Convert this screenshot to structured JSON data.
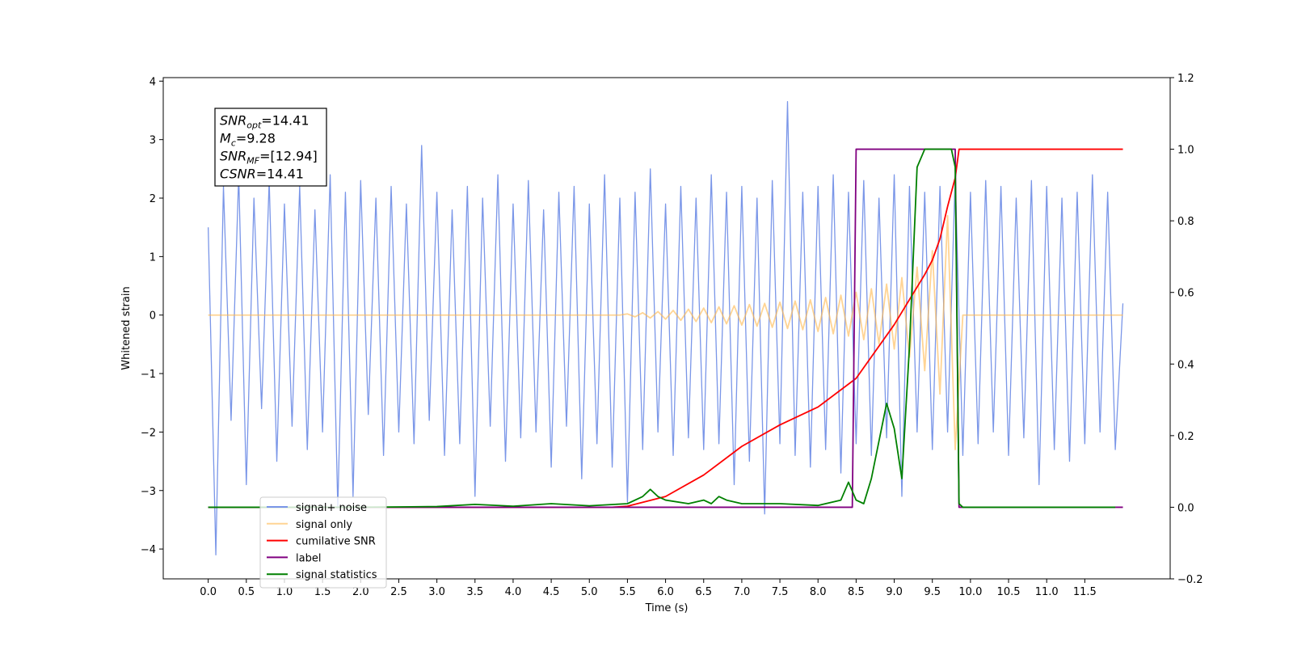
{
  "chart_data": {
    "type": "line",
    "xlabel": "Time (s)",
    "ylabel": "Whitened strain",
    "xlim": [
      -0.59,
      12.62
    ],
    "ylim": [
      -4.51,
      4.06
    ],
    "y2lim": [
      -0.2,
      1.2
    ],
    "xticks": [
      {
        "value": 0,
        "label": "0.0"
      },
      0.5,
      {
        "value": 1,
        "label": "1.0"
      },
      1.5,
      {
        "value": 2,
        "label": "2.0"
      },
      2.5,
      {
        "value": 3,
        "label": "3.0"
      },
      3.5,
      {
        "value": 4,
        "label": "4.0"
      },
      4.5,
      {
        "value": 5,
        "label": "5.0"
      },
      5.5,
      {
        "value": 6,
        "label": "6.0"
      },
      6.5,
      {
        "value": 7,
        "label": "7.0"
      },
      7.5,
      {
        "value": 8,
        "label": "8.0"
      },
      8.5,
      {
        "value": 9,
        "label": "9.0"
      },
      9.5,
      {
        "value": 10,
        "label": "10.0"
      },
      10.5,
      {
        "value": 11,
        "label": "11.0"
      },
      11.5
    ],
    "yticks": [
      {
        "value": -4,
        "label": "−4"
      },
      {
        "value": -3,
        "label": "−3"
      },
      {
        "value": -2,
        "label": "−2"
      },
      {
        "value": -1,
        "label": "−1"
      },
      0,
      1,
      2,
      3,
      4
    ],
    "y2ticks": [
      {
        "value": -0.2,
        "label": "−0.2"
      },
      {
        "value": 0,
        "label": "0.0"
      },
      0.2,
      0.4,
      0.6,
      0.8,
      {
        "value": 1,
        "label": "1.0"
      },
      1.2
    ],
    "grid": false,
    "legend_loc": "lower left",
    "annotation_loc": "upper left",
    "annotations": [
      {
        "symbol": "SNR",
        "sub": "opt",
        "text": "=14.41"
      },
      {
        "symbol": "M",
        "sub": "c",
        "text": "=9.28"
      },
      {
        "symbol": "SNR",
        "sub": "MF",
        "text": "=[12.94]"
      },
      {
        "symbol": "CSNR",
        "sub": null,
        "text": "=14.41"
      }
    ],
    "x": [
      0,
      0.1,
      0.2,
      0.3,
      0.4,
      0.5,
      0.6,
      0.7,
      0.8,
      0.9,
      1,
      1.1,
      1.2,
      1.3,
      1.4,
      1.5,
      1.6,
      1.7,
      1.8,
      1.9,
      2,
      2.1,
      2.2,
      2.3,
      2.4,
      2.5,
      2.6,
      2.7,
      2.8,
      2.9,
      3,
      3.1,
      3.2,
      3.3,
      3.4,
      3.5,
      3.6,
      3.7,
      3.8,
      3.9,
      4,
      4.1,
      4.2,
      4.3,
      4.4,
      4.5,
      4.6,
      4.7,
      4.8,
      4.9,
      5,
      5.1,
      5.2,
      5.3,
      5.4,
      5.5,
      5.6,
      5.7,
      5.8,
      5.9,
      6,
      6.1,
      6.2,
      6.3,
      6.4,
      6.5,
      6.6,
      6.7,
      6.8,
      6.9,
      7,
      7.1,
      7.2,
      7.3,
      7.4,
      7.5,
      7.6,
      7.7,
      7.8,
      7.9,
      8,
      8.1,
      8.2,
      8.3,
      8.4,
      8.5,
      8.6,
      8.7,
      8.8,
      8.9,
      9,
      9.1,
      9.2,
      9.3,
      9.4,
      9.5,
      9.6,
      9.7,
      9.8,
      9.9,
      10,
      10.1,
      10.2,
      10.3,
      10.4,
      10.5,
      10.6,
      10.7,
      10.8,
      10.9,
      11,
      11.1,
      11.2,
      11.3,
      11.4,
      11.5,
      11.6,
      11.7,
      11.8,
      11.9,
      12
    ],
    "series": [
      {
        "name": "signal+ noise",
        "color": "#7a96e8",
        "values": [
          1.5,
          -4.1,
          2.2,
          -1.8,
          2.4,
          -2.9,
          2.0,
          -1.6,
          2.3,
          -2.5,
          1.9,
          -1.9,
          2.2,
          -2.3,
          1.8,
          -2.0,
          2.4,
          -3.3,
          2.1,
          -3.1,
          2.3,
          -1.7,
          2.0,
          -2.4,
          2.2,
          -2.0,
          1.9,
          -2.2,
          2.9,
          -1.8,
          2.1,
          -2.4,
          1.8,
          -2.2,
          2.2,
          -3.1,
          2.0,
          -1.9,
          2.4,
          -2.5,
          1.9,
          -2.1,
          2.3,
          -2.0,
          1.8,
          -2.6,
          2.1,
          -1.9,
          2.2,
          -2.8,
          1.9,
          -2.2,
          2.4,
          -2.6,
          2.0,
          -3.2,
          2.1,
          -2.3,
          2.5,
          -2.0,
          1.9,
          -2.4,
          2.2,
          -2.1,
          2.0,
          -2.3,
          2.4,
          -2.2,
          2.1,
          -2.9,
          2.2,
          -2.5,
          2.0,
          -3.4,
          2.3,
          -2.2,
          3.65,
          -2.4,
          2.1,
          -2.6,
          2.2,
          -2.3,
          2.4,
          -2.7,
          2.1,
          -2.2,
          2.3,
          -2.4,
          2.0,
          -2.1,
          2.4,
          -3.1,
          2.2,
          -2.0,
          2.1,
          -2.3,
          2.2,
          -2.0,
          2.4,
          -2.4,
          2.1,
          -2.2,
          2.3,
          -2.0,
          2.2,
          -2.4,
          2.0,
          -2.1,
          2.3,
          -2.9,
          2.2,
          -2.3,
          2.0,
          -2.5,
          2.1,
          -2.2,
          2.4,
          -2.0,
          2.1,
          -2.3,
          0.2
        ]
      },
      {
        "name": "signal only",
        "color": "#ffb84d",
        "values": [
          0,
          0,
          0,
          0,
          0,
          0,
          0,
          0,
          0,
          0,
          0,
          0,
          0,
          0,
          0,
          0,
          0,
          0,
          0,
          0,
          0,
          0,
          0,
          0,
          0,
          0,
          0,
          0,
          0,
          0,
          0,
          0,
          0,
          0,
          0,
          0,
          0,
          0,
          0,
          0,
          0,
          0,
          0,
          0,
          0,
          0,
          0,
          0,
          0,
          0,
          0,
          0,
          0,
          0,
          0,
          0.02,
          -0.03,
          0.04,
          -0.05,
          0.06,
          -0.07,
          0.08,
          -0.09,
          0.1,
          -0.11,
          0.12,
          -0.13,
          0.14,
          -0.15,
          0.16,
          -0.17,
          0.18,
          -0.19,
          0.2,
          -0.21,
          0.22,
          -0.23,
          0.24,
          -0.25,
          0.26,
          -0.28,
          0.3,
          -0.32,
          0.34,
          -0.36,
          0.39,
          -0.42,
          0.45,
          -0.49,
          0.53,
          -0.58,
          0.64,
          -0.72,
          0.82,
          -0.95,
          1.1,
          -1.35,
          1.7,
          -2.3,
          0,
          0,
          0,
          0,
          0,
          0,
          0,
          0,
          0,
          0,
          0,
          0,
          0,
          0,
          0,
          0,
          0,
          0,
          0,
          0,
          0,
          0
        ]
      },
      {
        "name": "cumilative SNR",
        "color": "#ff0000",
        "axis": "y2",
        "x": [
          0,
          5.3,
          5.5,
          6.0,
          6.5,
          7.0,
          7.5,
          8.0,
          8.5,
          9.0,
          9.2,
          9.4,
          9.5,
          9.6,
          9.7,
          9.8,
          9.85,
          12.0
        ],
        "values": [
          0,
          0,
          0.003,
          0.03,
          0.09,
          0.17,
          0.23,
          0.28,
          0.36,
          0.51,
          0.58,
          0.65,
          0.69,
          0.75,
          0.84,
          0.92,
          1.0,
          1.0
        ]
      },
      {
        "name": "label",
        "color": "#800080",
        "axis": "y2",
        "x": [
          0,
          8.45,
          8.5,
          9.8,
          9.85,
          12.0
        ],
        "values": [
          0,
          0,
          1,
          1,
          0,
          0
        ]
      },
      {
        "name": "signal statistics",
        "color": "#008000",
        "axis": "y2",
        "x": [
          0,
          1,
          2,
          3,
          3.5,
          4,
          4.5,
          5,
          5.5,
          5.7,
          5.8,
          5.9,
          6.0,
          6.3,
          6.5,
          6.6,
          6.7,
          6.8,
          7.0,
          7.2,
          7.5,
          8.0,
          8.3,
          8.4,
          8.5,
          8.6,
          8.7,
          8.9,
          9.0,
          9.1,
          9.2,
          9.3,
          9.4,
          9.5,
          9.75,
          9.8,
          9.85,
          9.9,
          11.9
        ],
        "values": [
          0,
          0,
          0,
          0.002,
          0.008,
          0.003,
          0.01,
          0.004,
          0.01,
          0.03,
          0.05,
          0.03,
          0.02,
          0.01,
          0.02,
          0.01,
          0.03,
          0.02,
          0.01,
          0.01,
          0.01,
          0.005,
          0.02,
          0.07,
          0.02,
          0.01,
          0.08,
          0.29,
          0.22,
          0.08,
          0.45,
          0.95,
          1.0,
          1.0,
          1.0,
          0.95,
          0.01,
          0,
          0
        ]
      }
    ]
  }
}
